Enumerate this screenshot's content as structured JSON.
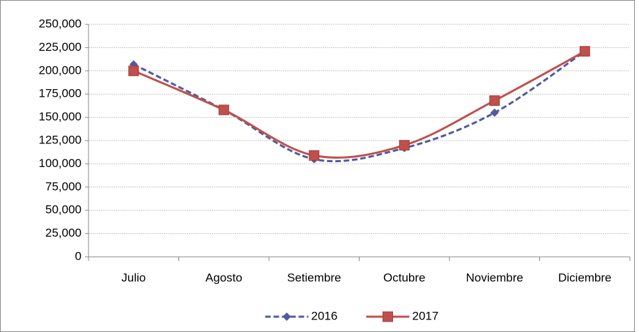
{
  "chart_data": {
    "type": "line",
    "categories": [
      "Julio",
      "Agosto",
      "Setiembre",
      "Octubre",
      "Noviembre",
      "Diciembre"
    ],
    "series": [
      {
        "name": "2016",
        "color": "#4f5b9c",
        "dash": true,
        "marker": "diamond",
        "values": [
          207000,
          158000,
          105000,
          117000,
          155000,
          221000
        ]
      },
      {
        "name": "2017",
        "color": "#c0504d",
        "dash": false,
        "marker": "square",
        "values": [
          200000,
          158000,
          109000,
          120000,
          168000,
          221000
        ]
      }
    ],
    "ylim": [
      0,
      250000
    ],
    "yticks": [
      0,
      {
        "value": 25000,
        "label": "25,000"
      },
      {
        "value": 50000,
        "label": "50,000"
      },
      {
        "value": 75000,
        "label": "75,000"
      },
      {
        "value": 100000,
        "label": "100,000"
      },
      {
        "value": 125000,
        "label": "125,000"
      },
      {
        "value": 150000,
        "label": "150,000"
      },
      {
        "value": 175000,
        "label": "175,000"
      },
      {
        "value": 200000,
        "label": "200,000"
      },
      {
        "value": 225000,
        "label": "225,000"
      },
      {
        "value": 250000,
        "label": "250,000"
      }
    ],
    "grid": true,
    "smooth": true,
    "legend": "bottom"
  }
}
